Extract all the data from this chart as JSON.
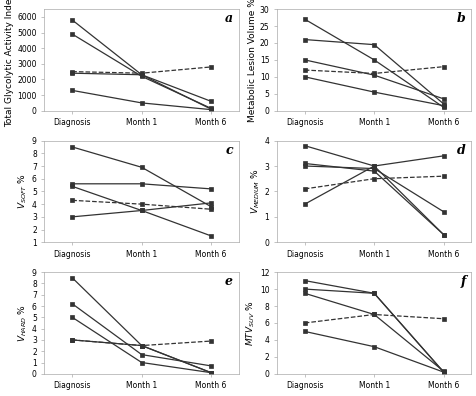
{
  "subplots": [
    {
      "label": "a",
      "ylabel": "Total Glycolytic Activity Index",
      "ylim": [
        0,
        6500
      ],
      "yticks": [
        0,
        1000,
        2000,
        3000,
        4000,
        5000,
        6000
      ],
      "patients": [
        {
          "values": [
            5800,
            2300,
            100
          ],
          "style": "solid",
          "marker": "s"
        },
        {
          "values": [
            4900,
            2200,
            150
          ],
          "style": "solid",
          "marker": "s"
        },
        {
          "values": [
            2400,
            2300,
            600
          ],
          "style": "solid",
          "marker": "s"
        },
        {
          "values": [
            1300,
            500,
            70
          ],
          "style": "solid",
          "marker": "s"
        },
        {
          "values": [
            2500,
            2400,
            2800
          ],
          "style": "dashed",
          "marker": "s"
        }
      ]
    },
    {
      "label": "b",
      "ylabel": "Metabolic Lesion Volume %",
      "ylim": [
        0,
        30
      ],
      "yticks": [
        0,
        5,
        10,
        15,
        20,
        25,
        30
      ],
      "patients": [
        {
          "values": [
            27,
            15,
            1
          ],
          "style": "solid",
          "marker": "s"
        },
        {
          "values": [
            21,
            19.5,
            2
          ],
          "style": "solid",
          "marker": "s"
        },
        {
          "values": [
            15,
            10.5,
            3.5
          ],
          "style": "solid",
          "marker": "s"
        },
        {
          "values": [
            10,
            5.5,
            1.5
          ],
          "style": "solid",
          "marker": "s"
        },
        {
          "values": [
            12,
            11,
            13
          ],
          "style": "dashed",
          "marker": "s"
        }
      ]
    },
    {
      "label": "c",
      "ylabel": "V_SOFT %",
      "ylim": [
        1,
        9
      ],
      "yticks": [
        1,
        2,
        3,
        4,
        5,
        6,
        7,
        8,
        9
      ],
      "patients": [
        {
          "values": [
            8.5,
            6.9,
            3.8
          ],
          "style": "solid",
          "marker": "s"
        },
        {
          "values": [
            5.6,
            5.6,
            5.2
          ],
          "style": "solid",
          "marker": "s"
        },
        {
          "values": [
            5.4,
            3.5,
            4.1
          ],
          "style": "solid",
          "marker": "s"
        },
        {
          "values": [
            3.0,
            3.5,
            1.5
          ],
          "style": "solid",
          "marker": "s"
        },
        {
          "values": [
            4.3,
            4.0,
            3.6
          ],
          "style": "dashed",
          "marker": "s"
        }
      ]
    },
    {
      "label": "d",
      "ylabel": "V_MEDIUM %",
      "ylim": [
        0,
        4
      ],
      "yticks": [
        0,
        1,
        2,
        3,
        4
      ],
      "patients": [
        {
          "values": [
            3.8,
            3.0,
            3.4
          ],
          "style": "solid",
          "marker": "s"
        },
        {
          "values": [
            3.1,
            2.8,
            0.3
          ],
          "style": "solid",
          "marker": "s"
        },
        {
          "values": [
            3.0,
            2.9,
            1.2
          ],
          "style": "solid",
          "marker": "s"
        },
        {
          "values": [
            1.5,
            3.0,
            0.3
          ],
          "style": "solid",
          "marker": "s"
        },
        {
          "values": [
            2.1,
            2.5,
            2.6
          ],
          "style": "dashed",
          "marker": "s"
        }
      ]
    },
    {
      "label": "e",
      "ylabel": "V_HARD %",
      "ylim": [
        0,
        9
      ],
      "yticks": [
        0,
        1,
        2,
        3,
        4,
        5,
        6,
        7,
        8,
        9
      ],
      "patients": [
        {
          "values": [
            8.5,
            2.5,
            0.1
          ],
          "style": "solid",
          "marker": "s"
        },
        {
          "values": [
            6.2,
            1.7,
            0.7
          ],
          "style": "solid",
          "marker": "s"
        },
        {
          "values": [
            5.0,
            1.0,
            0.1
          ],
          "style": "solid",
          "marker": "s"
        },
        {
          "values": [
            3.0,
            2.5,
            0.1
          ],
          "style": "solid",
          "marker": "s"
        },
        {
          "values": [
            3.0,
            2.5,
            2.9
          ],
          "style": "dashed",
          "marker": "s"
        }
      ]
    },
    {
      "label": "f",
      "ylabel": "MTV_SUV %",
      "ylim": [
        0,
        12
      ],
      "yticks": [
        0,
        2,
        4,
        6,
        8,
        10,
        12
      ],
      "patients": [
        {
          "values": [
            11,
            9.5,
            0.2
          ],
          "style": "solid",
          "marker": "s"
        },
        {
          "values": [
            10,
            9.5,
            0.2
          ],
          "style": "solid",
          "marker": "s"
        },
        {
          "values": [
            9.5,
            7,
            0.3
          ],
          "style": "solid",
          "marker": "s"
        },
        {
          "values": [
            5,
            3.2,
            0.2
          ],
          "style": "solid",
          "marker": "s"
        },
        {
          "values": [
            6,
            7,
            6.5
          ],
          "style": "dashed",
          "marker": "s"
        }
      ]
    }
  ],
  "xtick_labels": [
    "Diagnosis",
    "Month 1",
    "Month 6"
  ],
  "line_color": "#333333",
  "marker_size": 3.5,
  "linewidth": 0.9,
  "label_fontsize": 6.5,
  "tick_fontsize": 5.5,
  "subplot_label_fontsize": 9
}
